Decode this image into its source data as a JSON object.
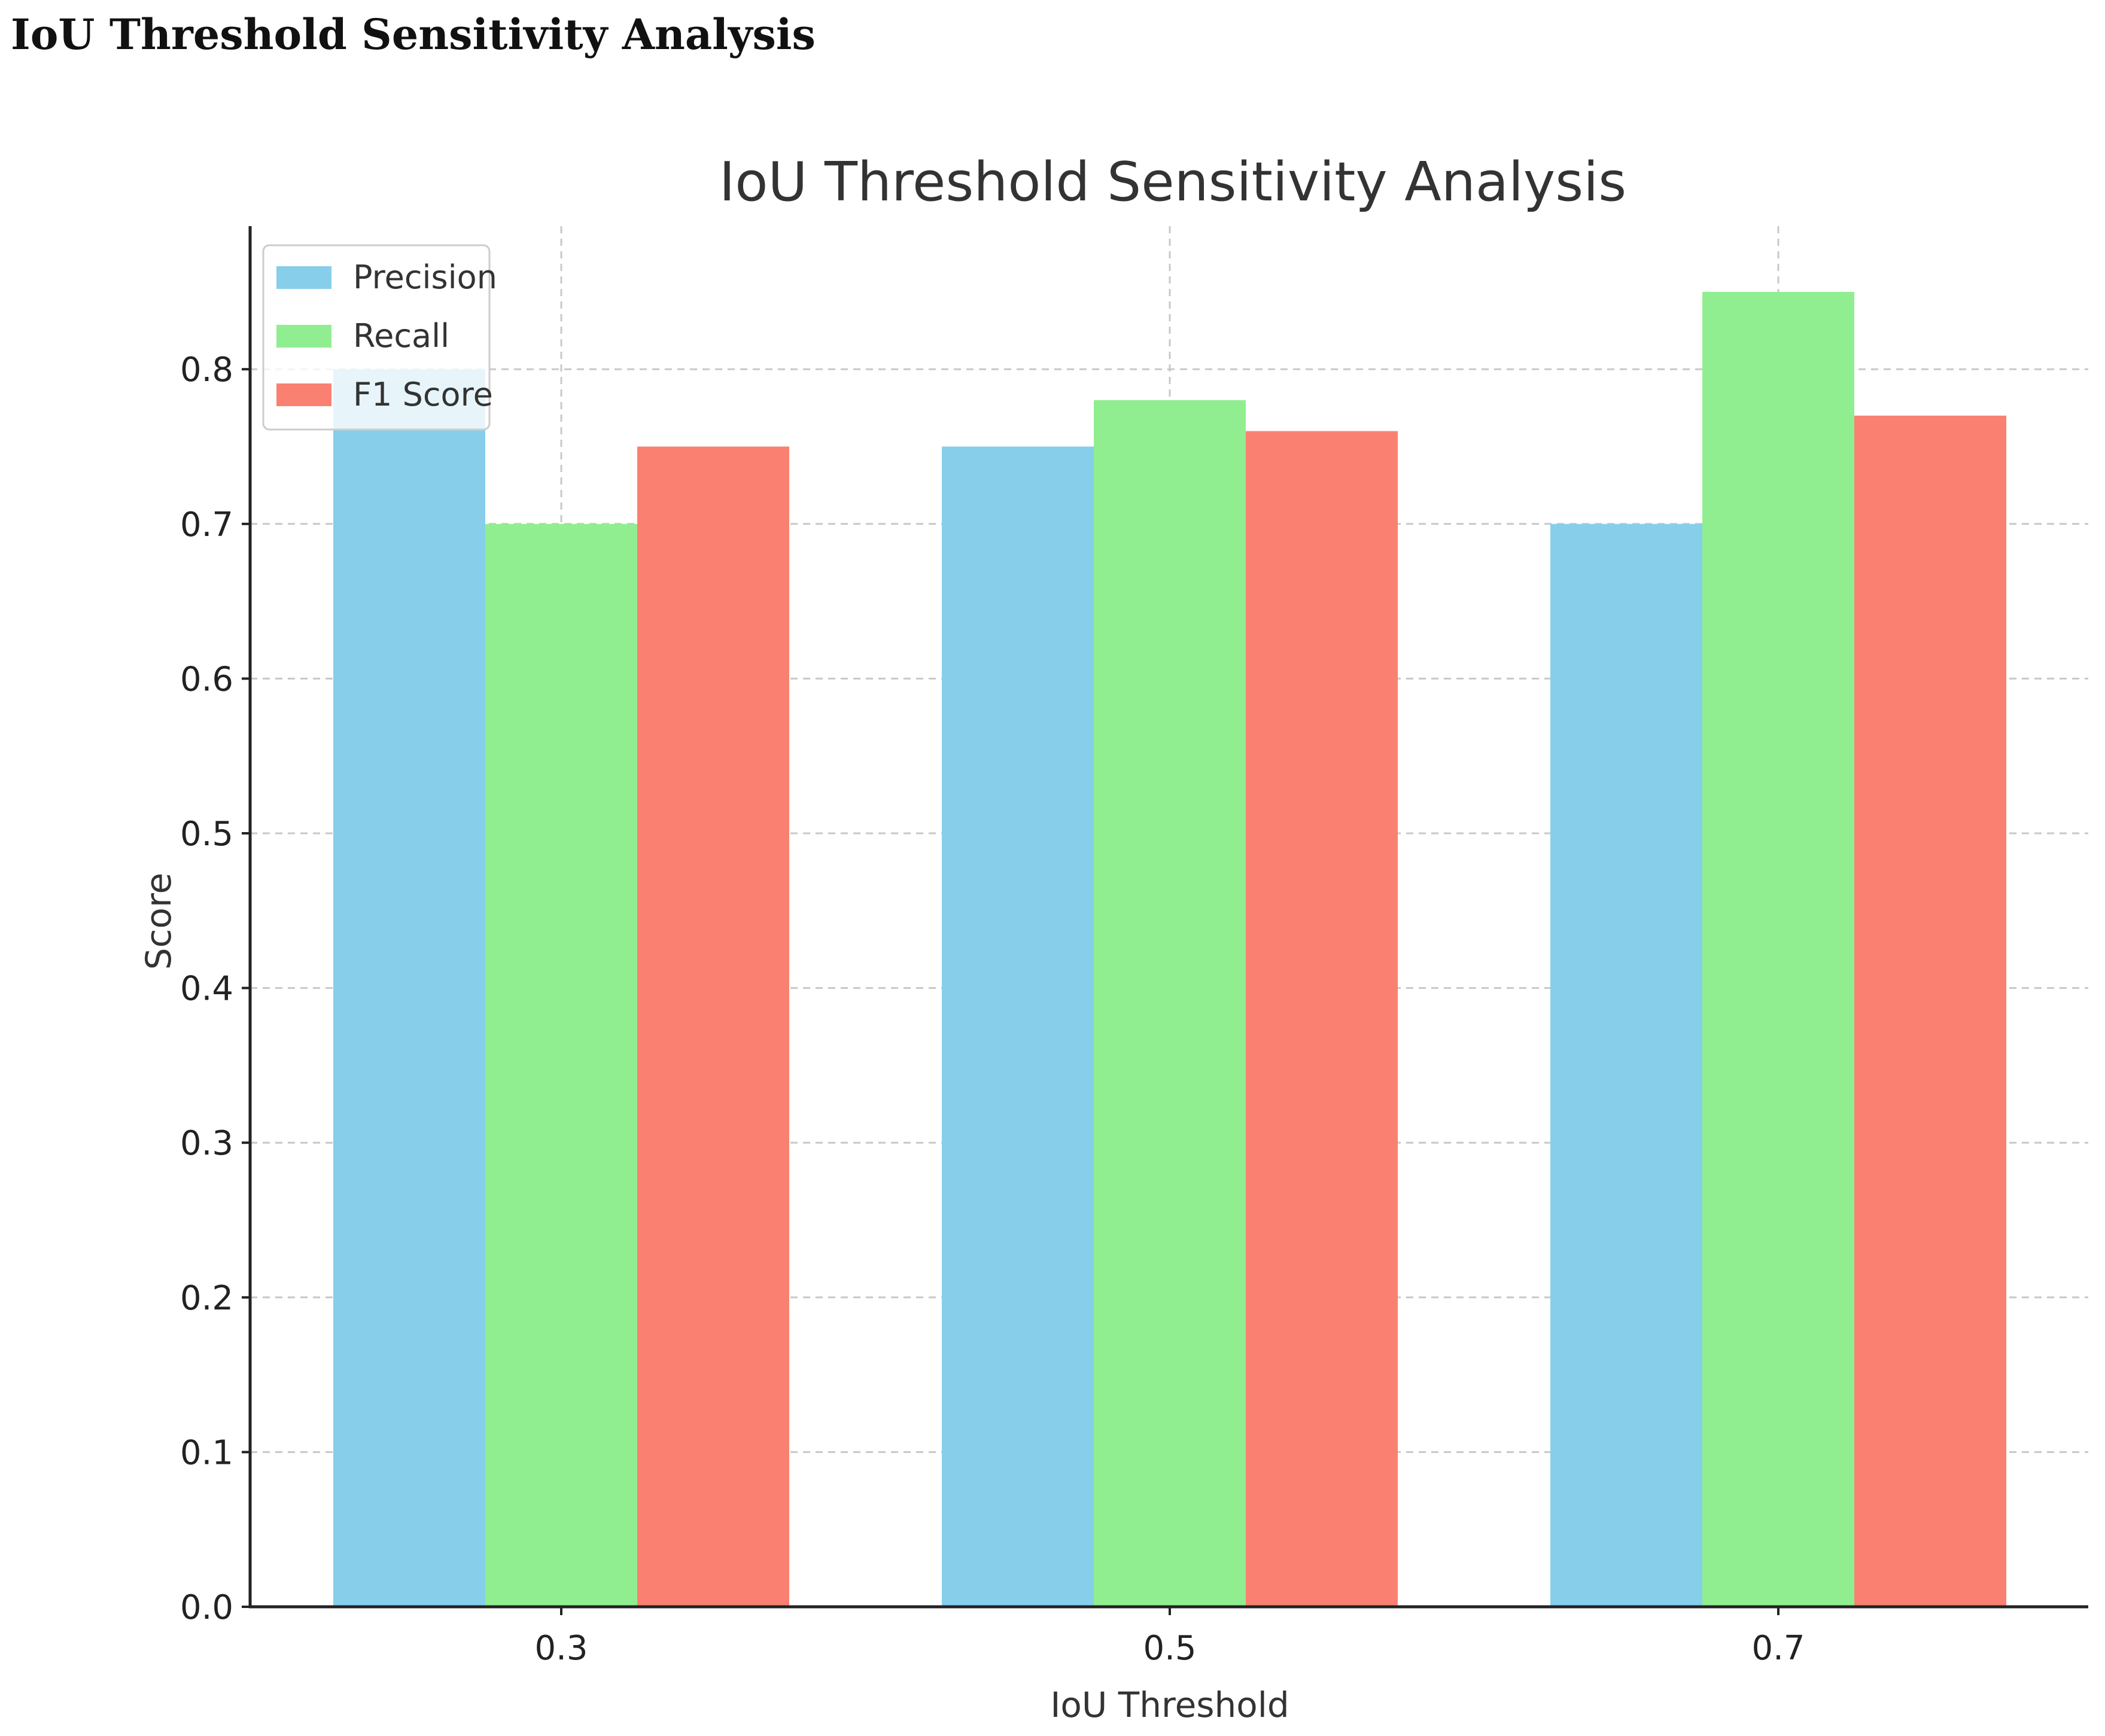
{
  "page": {
    "heading": "IoU Threshold Sensitivity Analysis"
  },
  "chart_data": {
    "type": "bar",
    "title": "IoU Threshold Sensitivity Analysis",
    "xlabel": "IoU Threshold",
    "ylabel": "Score",
    "categories": [
      "0.3",
      "0.5",
      "0.7"
    ],
    "series": [
      {
        "name": "Precision",
        "color": "#87ceeb",
        "values": [
          0.8,
          0.75,
          0.7
        ]
      },
      {
        "name": "Recall",
        "color": "#90ee90",
        "values": [
          0.7,
          0.78,
          0.85
        ]
      },
      {
        "name": "F1 Score",
        "color": "#fa8072",
        "values": [
          0.75,
          0.76,
          0.77
        ]
      }
    ],
    "ylim": [
      0,
      0.8925
    ],
    "yticks": [
      "0.0",
      "0.1",
      "0.2",
      "0.3",
      "0.4",
      "0.5",
      "0.6",
      "0.7",
      "0.8"
    ],
    "grid": true,
    "legend_position": "top-left"
  }
}
